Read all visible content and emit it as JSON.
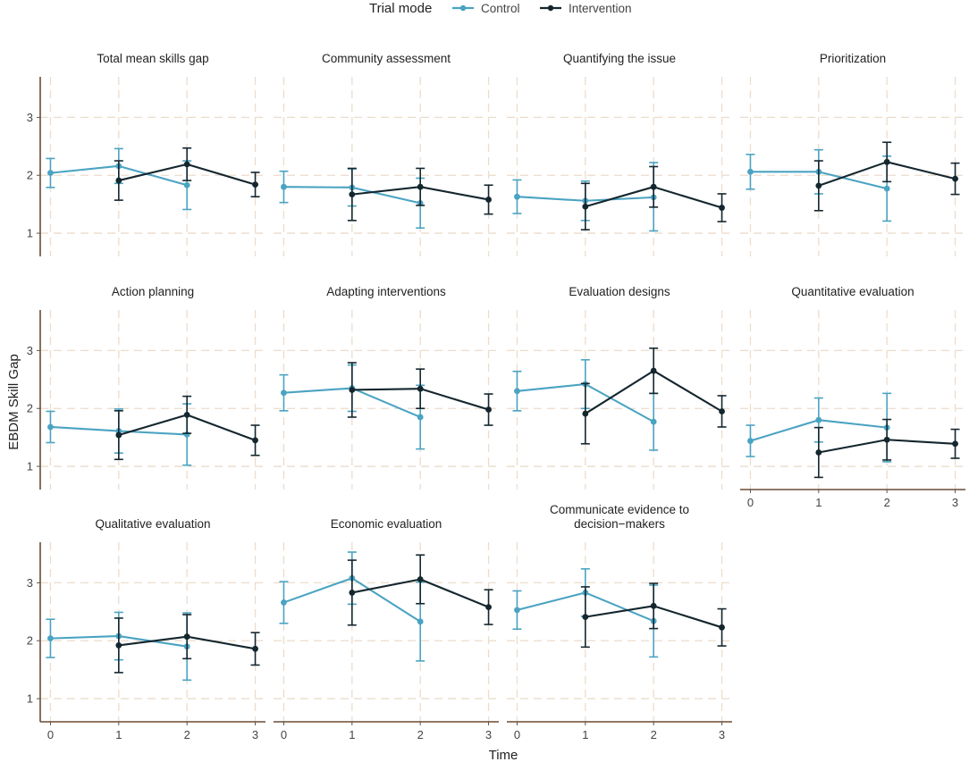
{
  "chart_data": {
    "type": "line",
    "legend": {
      "title": "Trial mode",
      "position": "top",
      "entries": [
        {
          "name": "Control",
          "color": "#4aa3c2"
        },
        {
          "name": "Intervention",
          "color": "#14262e"
        }
      ]
    },
    "xlabel": "Time",
    "ylabel": "EBDM Skill Gap",
    "x_ticks": [
      0,
      1,
      2,
      3
    ],
    "y_ticks": [
      1,
      2,
      3
    ],
    "xlim": [
      -0.15,
      3.15
    ],
    "ylim": [
      0.6,
      3.7
    ],
    "grid": true,
    "panels": [
      {
        "title": [
          "Total mean skills gap"
        ],
        "series": [
          {
            "name": "Control",
            "x": [
              0,
              1,
              2
            ],
            "y": [
              2.04,
              2.16,
              1.83
            ],
            "lower": [
              1.79,
              1.86,
              1.41
            ],
            "upper": [
              2.29,
              2.46,
              2.25
            ]
          },
          {
            "name": "Intervention",
            "x": [
              1,
              2,
              3
            ],
            "y": [
              1.91,
              2.19,
              1.84
            ],
            "lower": [
              1.57,
              1.91,
              1.63
            ],
            "upper": [
              2.25,
              2.47,
              2.05
            ]
          }
        ]
      },
      {
        "title": [
          "Community assessment"
        ],
        "series": [
          {
            "name": "Control",
            "x": [
              0,
              1,
              2
            ],
            "y": [
              1.8,
              1.79,
              1.52
            ],
            "lower": [
              1.53,
              1.47,
              1.09
            ],
            "upper": [
              2.07,
              2.11,
              1.95
            ]
          },
          {
            "name": "Intervention",
            "x": [
              1,
              2,
              3
            ],
            "y": [
              1.67,
              1.8,
              1.58
            ],
            "lower": [
              1.22,
              1.48,
              1.33
            ],
            "upper": [
              2.12,
              2.12,
              1.83
            ]
          }
        ]
      },
      {
        "title": [
          "Quantifying the issue"
        ],
        "series": [
          {
            "name": "Control",
            "x": [
              0,
              1,
              2
            ],
            "y": [
              1.63,
              1.56,
              1.62
            ],
            "lower": [
              1.34,
              1.22,
              1.04
            ],
            "upper": [
              1.92,
              1.9,
              2.22
            ]
          },
          {
            "name": "Intervention",
            "x": [
              1,
              2,
              3
            ],
            "y": [
              1.46,
              1.8,
              1.44
            ],
            "lower": [
              1.06,
              1.45,
              1.2
            ],
            "upper": [
              1.86,
              2.15,
              1.68
            ]
          }
        ]
      },
      {
        "title": [
          "Prioritization"
        ],
        "series": [
          {
            "name": "Control",
            "x": [
              0,
              1,
              2
            ],
            "y": [
              2.06,
              2.06,
              1.77
            ],
            "lower": [
              1.76,
              1.68,
              1.21
            ],
            "upper": [
              2.36,
              2.44,
              2.33
            ]
          },
          {
            "name": "Intervention",
            "x": [
              1,
              2,
              3
            ],
            "y": [
              1.82,
              2.23,
              1.94
            ],
            "lower": [
              1.39,
              1.89,
              1.67
            ],
            "upper": [
              2.25,
              2.57,
              2.21
            ]
          }
        ]
      },
      {
        "title": [
          "Action planning"
        ],
        "series": [
          {
            "name": "Control",
            "x": [
              0,
              1,
              2
            ],
            "y": [
              1.68,
              1.61,
              1.55
            ],
            "lower": [
              1.41,
              1.23,
              1.02
            ],
            "upper": [
              1.95,
              1.99,
              2.08
            ]
          },
          {
            "name": "Intervention",
            "x": [
              1,
              2,
              3
            ],
            "y": [
              1.54,
              1.89,
              1.45
            ],
            "lower": [
              1.12,
              1.57,
              1.19
            ],
            "upper": [
              1.96,
              2.21,
              1.71
            ]
          }
        ]
      },
      {
        "title": [
          "Adapting interventions"
        ],
        "series": [
          {
            "name": "Control",
            "x": [
              0,
              1,
              2
            ],
            "y": [
              2.27,
              2.35,
              1.85
            ],
            "lower": [
              1.96,
              1.95,
              1.3
            ],
            "upper": [
              2.58,
              2.75,
              2.4
            ]
          },
          {
            "name": "Intervention",
            "x": [
              1,
              2,
              3
            ],
            "y": [
              2.32,
              2.34,
              1.98
            ],
            "lower": [
              1.85,
              2.0,
              1.71
            ],
            "upper": [
              2.79,
              2.68,
              2.25
            ]
          }
        ]
      },
      {
        "title": [
          "Evaluation designs"
        ],
        "series": [
          {
            "name": "Control",
            "x": [
              0,
              1,
              2
            ],
            "y": [
              2.3,
              2.42,
              1.77
            ],
            "lower": [
              1.96,
              2.0,
              1.28
            ],
            "upper": [
              2.64,
              2.84,
              2.26
            ]
          },
          {
            "name": "Intervention",
            "x": [
              1,
              2,
              3
            ],
            "y": [
              1.91,
              2.65,
              1.95
            ],
            "lower": [
              1.39,
              2.26,
              1.68
            ],
            "upper": [
              2.43,
              3.04,
              2.22
            ]
          }
        ]
      },
      {
        "title": [
          "Quantitative evaluation"
        ],
        "series": [
          {
            "name": "Control",
            "x": [
              0,
              1,
              2
            ],
            "y": [
              1.44,
              1.8,
              1.67
            ],
            "lower": [
              1.17,
              1.42,
              1.08
            ],
            "upper": [
              1.71,
              2.18,
              2.26
            ]
          },
          {
            "name": "Intervention",
            "x": [
              1,
              2,
              3
            ],
            "y": [
              1.24,
              1.46,
              1.39
            ],
            "lower": [
              0.81,
              1.11,
              1.14
            ],
            "upper": [
              1.67,
              1.81,
              1.64
            ]
          }
        ]
      },
      {
        "title": [
          "Qualitative evaluation"
        ],
        "series": [
          {
            "name": "Control",
            "x": [
              0,
              1,
              2
            ],
            "y": [
              2.04,
              2.08,
              1.9
            ],
            "lower": [
              1.71,
              1.67,
              1.32
            ],
            "upper": [
              2.37,
              2.49,
              2.48
            ]
          },
          {
            "name": "Intervention",
            "x": [
              1,
              2,
              3
            ],
            "y": [
              1.92,
              2.07,
              1.86
            ],
            "lower": [
              1.45,
              1.69,
              1.58
            ],
            "upper": [
              2.39,
              2.45,
              2.14
            ]
          }
        ]
      },
      {
        "title": [
          "Economic evaluation"
        ],
        "series": [
          {
            "name": "Control",
            "x": [
              0,
              1,
              2
            ],
            "y": [
              2.66,
              3.08,
              2.33
            ],
            "lower": [
              2.3,
              2.63,
              1.65
            ],
            "upper": [
              3.02,
              3.53,
              3.01
            ]
          },
          {
            "name": "Intervention",
            "x": [
              1,
              2,
              3
            ],
            "y": [
              2.83,
              3.06,
              2.58
            ],
            "lower": [
              2.27,
              2.64,
              2.28
            ],
            "upper": [
              3.39,
              3.48,
              2.88
            ]
          }
        ]
      },
      {
        "title": [
          "Communicate evidence to",
          "decision−makers"
        ],
        "series": [
          {
            "name": "Control",
            "x": [
              0,
              1,
              2
            ],
            "y": [
              2.53,
              2.83,
              2.34
            ],
            "lower": [
              2.2,
              2.42,
              1.72
            ],
            "upper": [
              2.86,
              3.24,
              2.96
            ]
          },
          {
            "name": "Intervention",
            "x": [
              1,
              2,
              3
            ],
            "y": [
              2.41,
              2.6,
              2.23
            ],
            "lower": [
              1.89,
              2.21,
              1.91
            ],
            "upper": [
              2.93,
              2.99,
              2.55
            ]
          }
        ]
      }
    ]
  }
}
